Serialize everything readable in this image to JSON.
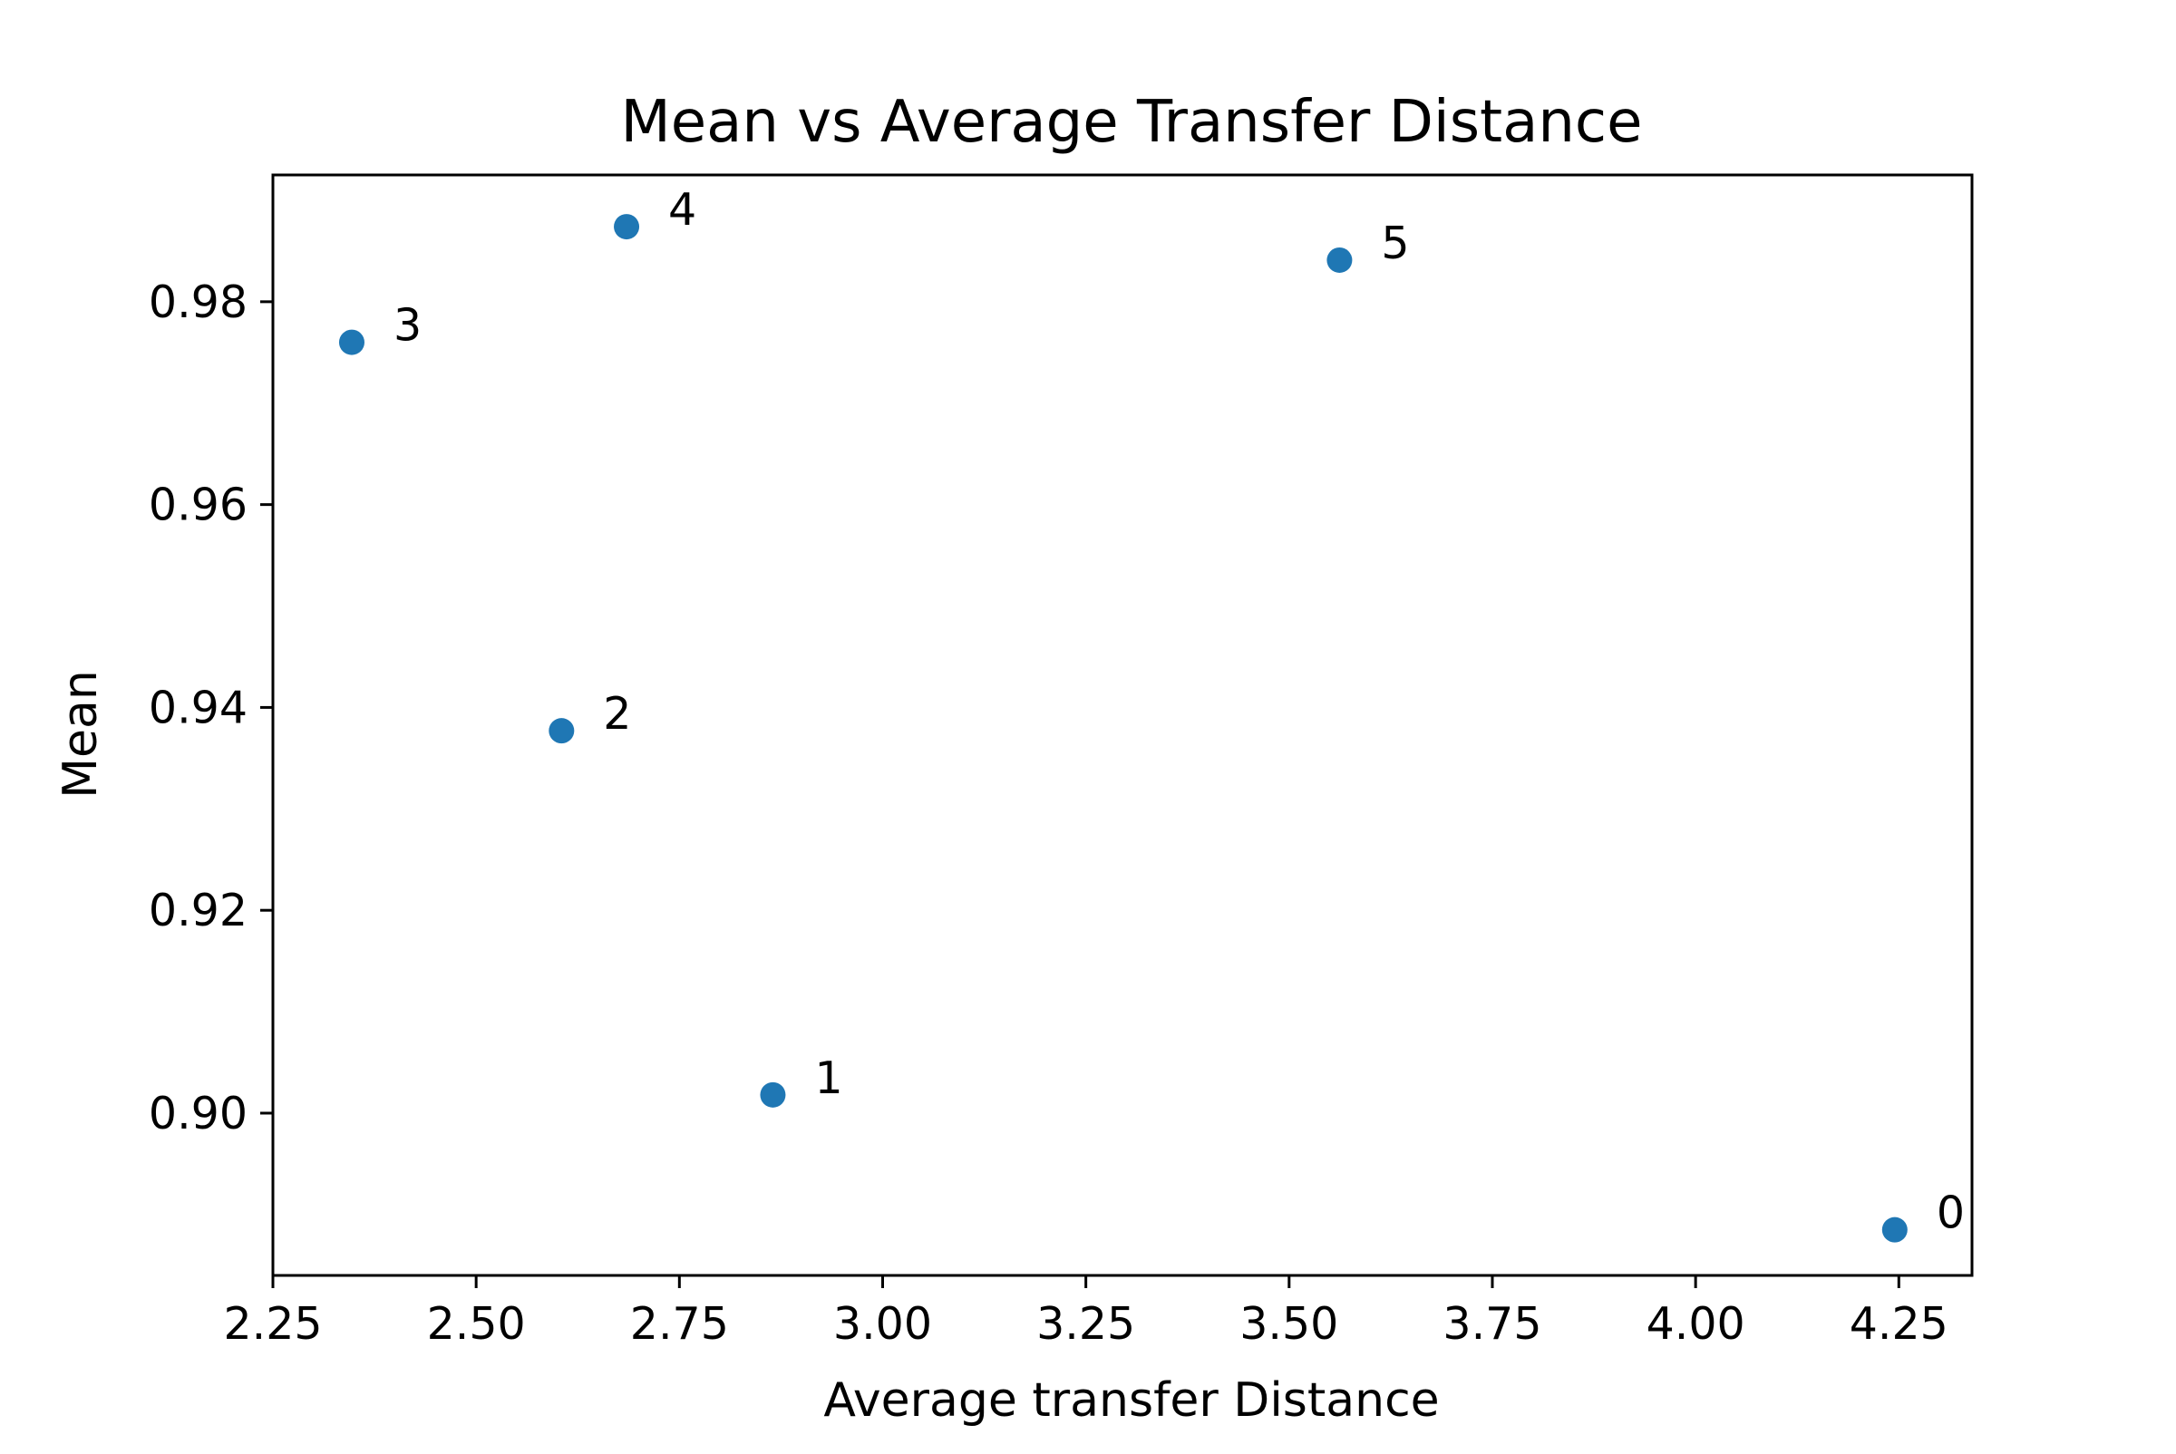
{
  "chart_data": {
    "type": "scatter",
    "title": "Mean vs Average Transfer Distance",
    "xlabel": "Average transfer Distance",
    "ylabel": "Mean",
    "xlim": [
      2.25,
      4.34
    ],
    "ylim": [
      0.884,
      0.9925
    ],
    "x_ticks": [
      "2.25",
      "2.50",
      "2.75",
      "3.00",
      "3.25",
      "3.50",
      "3.75",
      "4.00",
      "4.25"
    ],
    "y_ticks": [
      "0.90",
      "0.92",
      "0.94",
      "0.96",
      "0.98"
    ],
    "grid": false,
    "marker_color": "#1f77b4",
    "points": [
      {
        "label": "0",
        "x": 4.245,
        "y": 0.8885
      },
      {
        "label": "1",
        "x": 2.865,
        "y": 0.9018
      },
      {
        "label": "2",
        "x": 2.605,
        "y": 0.9377
      },
      {
        "label": "3",
        "x": 2.347,
        "y": 0.976
      },
      {
        "label": "4",
        "x": 2.685,
        "y": 0.9874
      },
      {
        "label": "5",
        "x": 3.562,
        "y": 0.9841
      }
    ]
  }
}
